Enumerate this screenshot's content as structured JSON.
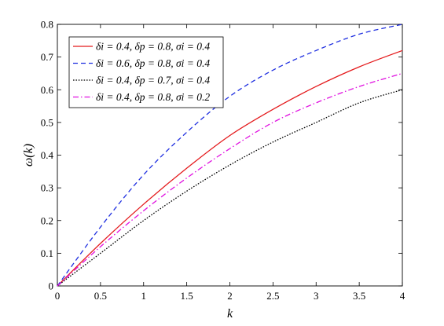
{
  "chart_data": {
    "type": "line",
    "title": "",
    "xlabel": "k",
    "ylabel": "ω(k)",
    "xlim": [
      0,
      4
    ],
    "ylim": [
      0,
      0.8
    ],
    "xticks": [
      0,
      0.5,
      1,
      1.5,
      2,
      2.5,
      3,
      3.5,
      4
    ],
    "yticks": [
      0,
      0.1,
      0.2,
      0.3,
      0.4,
      0.5,
      0.6,
      0.7,
      0.8
    ],
    "xtick_labels": [
      "0",
      "0.5",
      "1",
      "1.5",
      "2",
      "2.5",
      "3",
      "3.5",
      "4"
    ],
    "ytick_labels": [
      "0",
      "0.1",
      "0.2",
      "0.3",
      "0.4",
      "0.5",
      "0.6",
      "0.7",
      "0.8"
    ],
    "grid": false,
    "legend_position": "top-left",
    "x": [
      0,
      0.5,
      1,
      1.5,
      2,
      2.5,
      3,
      3.5,
      4
    ],
    "series": [
      {
        "name": "δi = 0.4, δp = 0.8, σi = 0.4",
        "color": "#e41a1c",
        "dash": "solid",
        "values": [
          0,
          0.13,
          0.25,
          0.36,
          0.46,
          0.54,
          0.61,
          0.67,
          0.72
        ]
      },
      {
        "name": "δi = 0.6, δp = 0.8, σi = 0.4",
        "color": "#1f2fe0",
        "dash": "dashed",
        "values": [
          0,
          0.18,
          0.34,
          0.47,
          0.58,
          0.66,
          0.72,
          0.77,
          0.8
        ]
      },
      {
        "name": "δi = 0.4, δp = 0.7, σi = 0.4",
        "color": "#000000",
        "dash": "dotted",
        "values": [
          0,
          0.1,
          0.2,
          0.29,
          0.37,
          0.44,
          0.5,
          0.56,
          0.6
        ]
      },
      {
        "name": "δi = 0.4, δp = 0.8, σi = 0.2",
        "color": "#e010e0",
        "dash": "dashdot",
        "values": [
          0,
          0.12,
          0.23,
          0.33,
          0.42,
          0.5,
          0.56,
          0.61,
          0.65
        ]
      }
    ]
  }
}
